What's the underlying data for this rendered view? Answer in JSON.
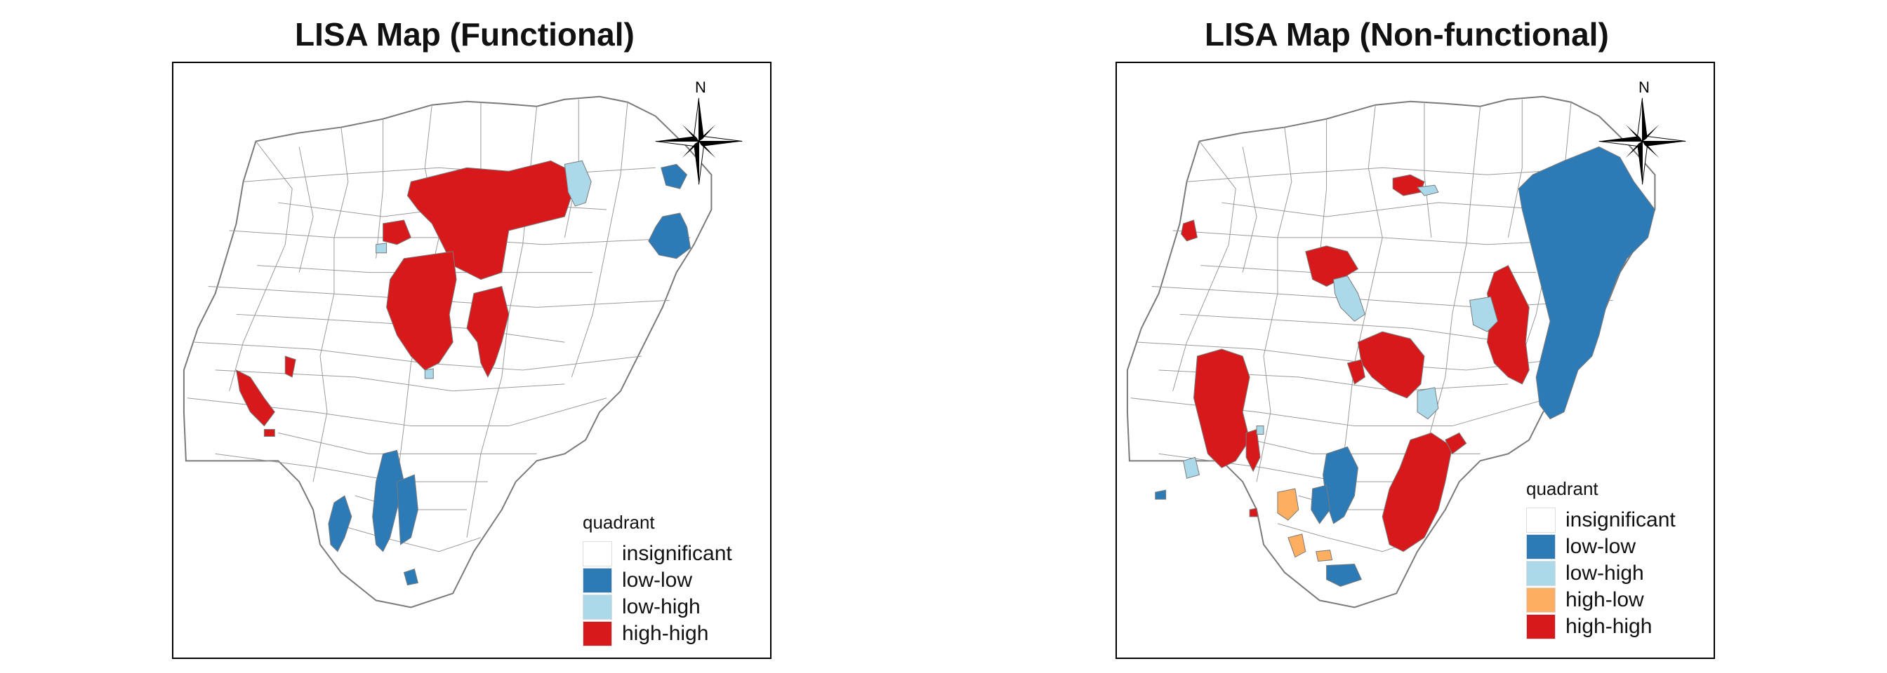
{
  "panels": [
    {
      "title": "LISA Map (Functional)",
      "north_label": "N",
      "legend": {
        "title": "quadrant",
        "items": [
          {
            "label": "insignificant",
            "color": "#ffffff"
          },
          {
            "label": "low-low",
            "color": "#2c7bb6"
          },
          {
            "label": "low-high",
            "color": "#abd9e9"
          },
          {
            "label": "high-high",
            "color": "#d7191c"
          }
        ]
      }
    },
    {
      "title": "LISA Map (Non-functional)",
      "north_label": "N",
      "legend": {
        "title": "quadrant",
        "items": [
          {
            "label": "insignificant",
            "color": "#ffffff"
          },
          {
            "label": "low-low",
            "color": "#2c7bb6"
          },
          {
            "label": "low-high",
            "color": "#abd9e9"
          },
          {
            "label": "high-low",
            "color": "#fdae61"
          },
          {
            "label": "high-high",
            "color": "#d7191c"
          }
        ]
      }
    }
  ],
  "colors": {
    "insignificant": "#ffffff",
    "low_low": "#2c7bb6",
    "low_high": "#abd9e9",
    "high_low": "#fdae61",
    "high_high": "#d7191c",
    "boundary": "#8a8a8a"
  }
}
